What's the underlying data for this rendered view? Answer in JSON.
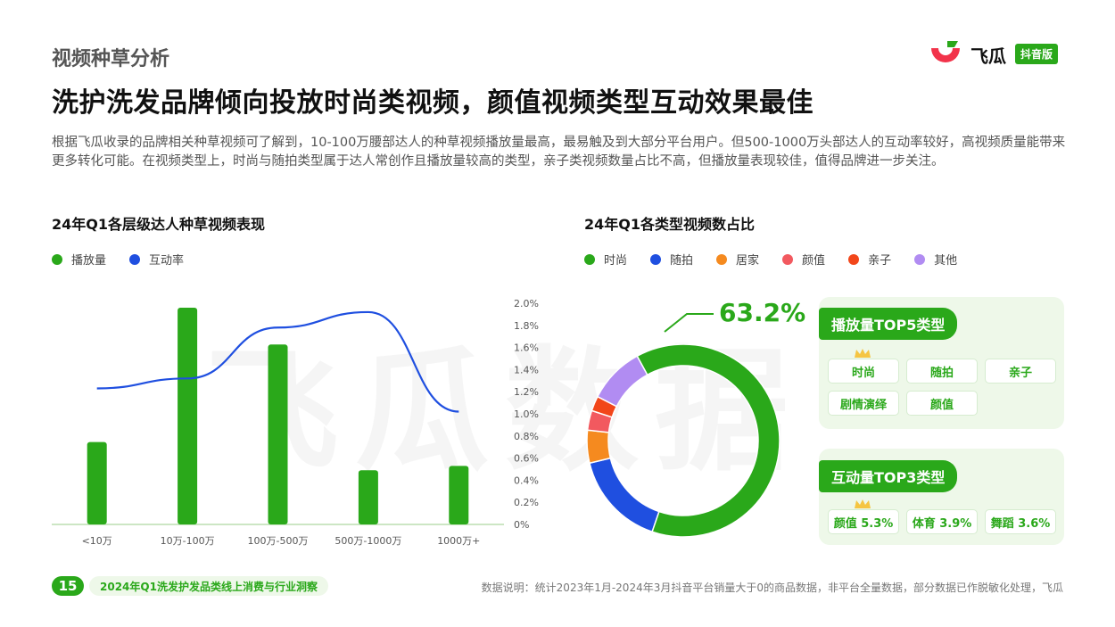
{
  "header": {
    "section": "视频种草分析",
    "headline": "洗护洗发品牌倾向投放时尚类视频，颜值视频类型互动效果最佳",
    "intro": "根据飞瓜收录的品牌相关种草视频可了解到，10-100万腰部达人的种草视频播放量最高，最易触及到大部分平台用户。但500-1000万头部达人的互动率较好，高视频质量能带来更多转化可能。在视频类型上，时尚与随拍类型属于达人常创作且播放量较高的类型，亲子类视频数量占比不高，但播放量表现较佳，值得品牌进一步关注。"
  },
  "logo": {
    "name": "飞瓜",
    "badge": "抖音版"
  },
  "watermark": "飞瓜数据",
  "colors": {
    "brand": "#2aa81a",
    "line": "#1f4fe0"
  },
  "chart_data": [
    {
      "type": "bar",
      "title": "24年Q1各层级达人种草视频表现",
      "categories": [
        "<10万",
        "10万-100万",
        "100万-500万",
        "500万-1000万",
        "1000万+"
      ],
      "series": [
        {
          "name": "播放量",
          "type": "bar",
          "color": "#2aa81a",
          "values": [
            0.38,
            1.0,
            0.83,
            0.25,
            0.27
          ]
        },
        {
          "name": "互动率",
          "type": "line",
          "color": "#1f4fe0",
          "axis": "right",
          "values": [
            1.23,
            1.32,
            1.78,
            1.92,
            1.02
          ]
        }
      ],
      "y2ticks": [
        "0%",
        "0.2%",
        "0.4%",
        "0.6%",
        "0.8%",
        "1.0%",
        "1.2%",
        "1.4%",
        "1.6%",
        "1.8%",
        "2.0%"
      ],
      "y2lim": [
        0,
        2.0
      ],
      "legend_position": "top-left"
    },
    {
      "type": "pie",
      "title": "24年Q1各类型视频数占比",
      "labels": [
        "时尚",
        "随拍",
        "居家",
        "颜值",
        "亲子",
        "其他"
      ],
      "values": [
        63.2,
        16.0,
        5.5,
        3.3,
        2.5,
        9.5
      ],
      "colors": [
        "#2aa81a",
        "#1f4fe0",
        "#f58a1f",
        "#f2595f",
        "#f2461a",
        "#b18cf2"
      ],
      "highlight_label": "63.2%",
      "legend_position": "top"
    }
  ],
  "panels": {
    "play_top5": {
      "title": "播放量TOP5类型",
      "items": [
        "时尚",
        "随拍",
        "亲子",
        "剧情演绎",
        "颜值"
      ]
    },
    "interact_top3": {
      "title": "互动量TOP3类型",
      "items": [
        "颜值 5.3%",
        "体育 3.9%",
        "舞蹈 3.6%"
      ]
    }
  },
  "footer": {
    "page": "15",
    "report": "2024年Q1洗发护发品类线上消费与行业洞察",
    "note": "数据说明：统计2023年1月-2024年3月抖音平台销量大于0的商品数据，非平台全量数据，部分数据已作脱敏化处理，飞瓜"
  }
}
